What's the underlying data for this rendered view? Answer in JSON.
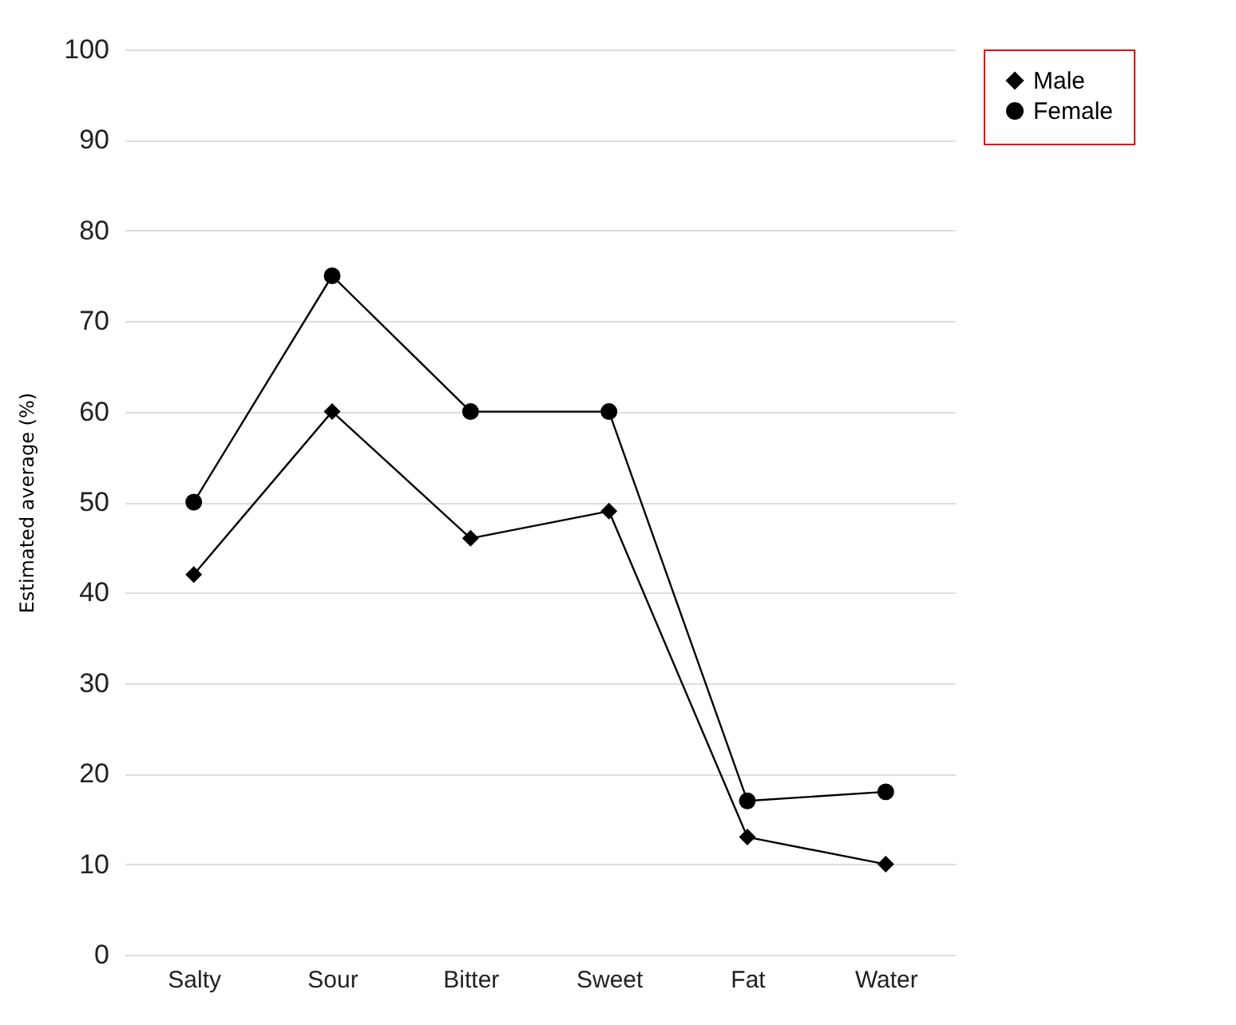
{
  "chart_data": {
    "type": "line",
    "ylabel": "Estimated average (%)",
    "categories": [
      "Salty",
      "Sour",
      "Bitter",
      "Sweet",
      "Fat",
      "Water"
    ],
    "series": [
      {
        "name": "Male",
        "color": "#000000",
        "marker": "diamond",
        "values": [
          42,
          60,
          46,
          49,
          13,
          10
        ]
      },
      {
        "name": "Female",
        "color": "#000000",
        "marker": "circle",
        "values": [
          50,
          75,
          60,
          60,
          17,
          18
        ]
      }
    ],
    "ylim": [
      0,
      100
    ],
    "yticks": [
      0,
      10,
      20,
      30,
      40,
      50,
      60,
      70,
      80,
      90,
      100
    ],
    "grid": "y",
    "legend": "top right",
    "line_style": "solid"
  }
}
